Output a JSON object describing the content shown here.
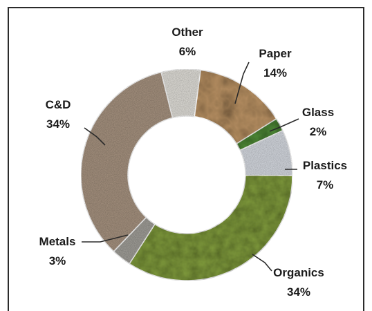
{
  "chart_data": {
    "type": "pie",
    "variant": "donut",
    "categories": [
      "Other",
      "Paper",
      "Glass",
      "Plastics",
      "Organics",
      "Metals",
      "C&D"
    ],
    "values": [
      6,
      14,
      2,
      7,
      34,
      3,
      34
    ],
    "value_labels": [
      "6%",
      "14%",
      "2%",
      "7%",
      "34%",
      "3%",
      "34%"
    ],
    "unit": "%",
    "colors": [
      "#e4e2dc",
      "#b08a5e",
      "#4f8a37",
      "#d9dde4",
      "#7f9a3c",
      "#a3a19b",
      "#a99582"
    ],
    "textures": [
      "paper-white",
      "crumpled-cardboard",
      "glass-bottle",
      "plastic-bottles",
      "food-waste",
      "scrap-metal",
      "gravel-rubble"
    ],
    "title": "",
    "legend": "none",
    "start_angle_deg": -14
  }
}
